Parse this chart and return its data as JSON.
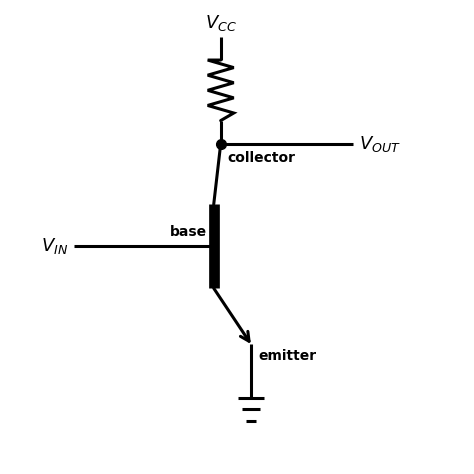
{
  "bg_color": "#ffffff",
  "line_color": "#000000",
  "line_width": 2.2,
  "vcc_label": "$V_{CC}$",
  "vout_label": "$V_{OUT}$",
  "vin_label": "$V_{IN}$",
  "collector_label": "collector",
  "base_label": "base",
  "emitter_label": "emitter",
  "figsize": [
    4.74,
    4.74
  ],
  "dpi": 100
}
